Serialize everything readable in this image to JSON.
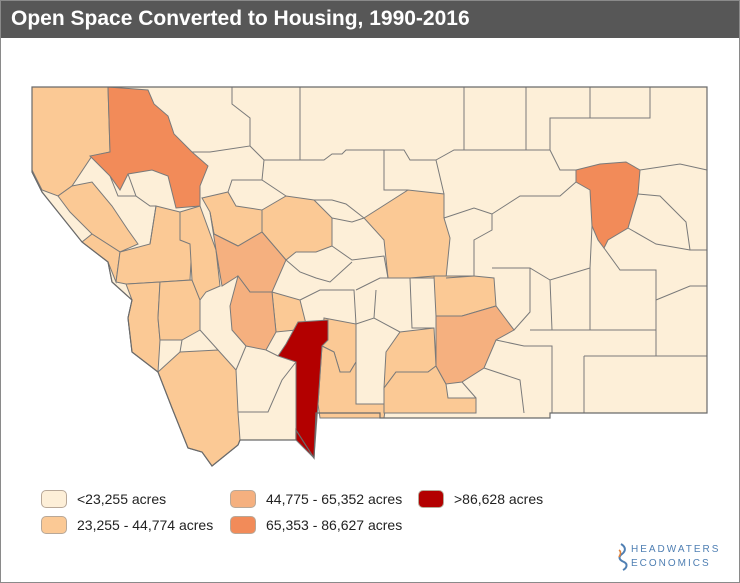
{
  "title": "Open Space Converted to Housing, 1990-2016",
  "colors": {
    "lowest": "#fdefd8",
    "low": "#fbc995",
    "mid": "#f5b07f",
    "high": "#f28b59",
    "highest": "#b30000",
    "border": "#7a7a7a",
    "title_bar": "#575757"
  },
  "legend": [
    {
      "label": "<23,255 acres",
      "color_key": "lowest"
    },
    {
      "label": "23,255 - 44,774 acres",
      "color_key": "low"
    },
    {
      "label": "44,775 - 65,352 acres",
      "color_key": "mid"
    },
    {
      "label": "65,353 - 86,627 acres",
      "color_key": "high"
    },
    {
      "label": ">86,628 acres",
      "color_key": "highest"
    }
  ],
  "logo": {
    "line1": "HEADWATERS",
    "line2": "ECONOMICS"
  }
}
